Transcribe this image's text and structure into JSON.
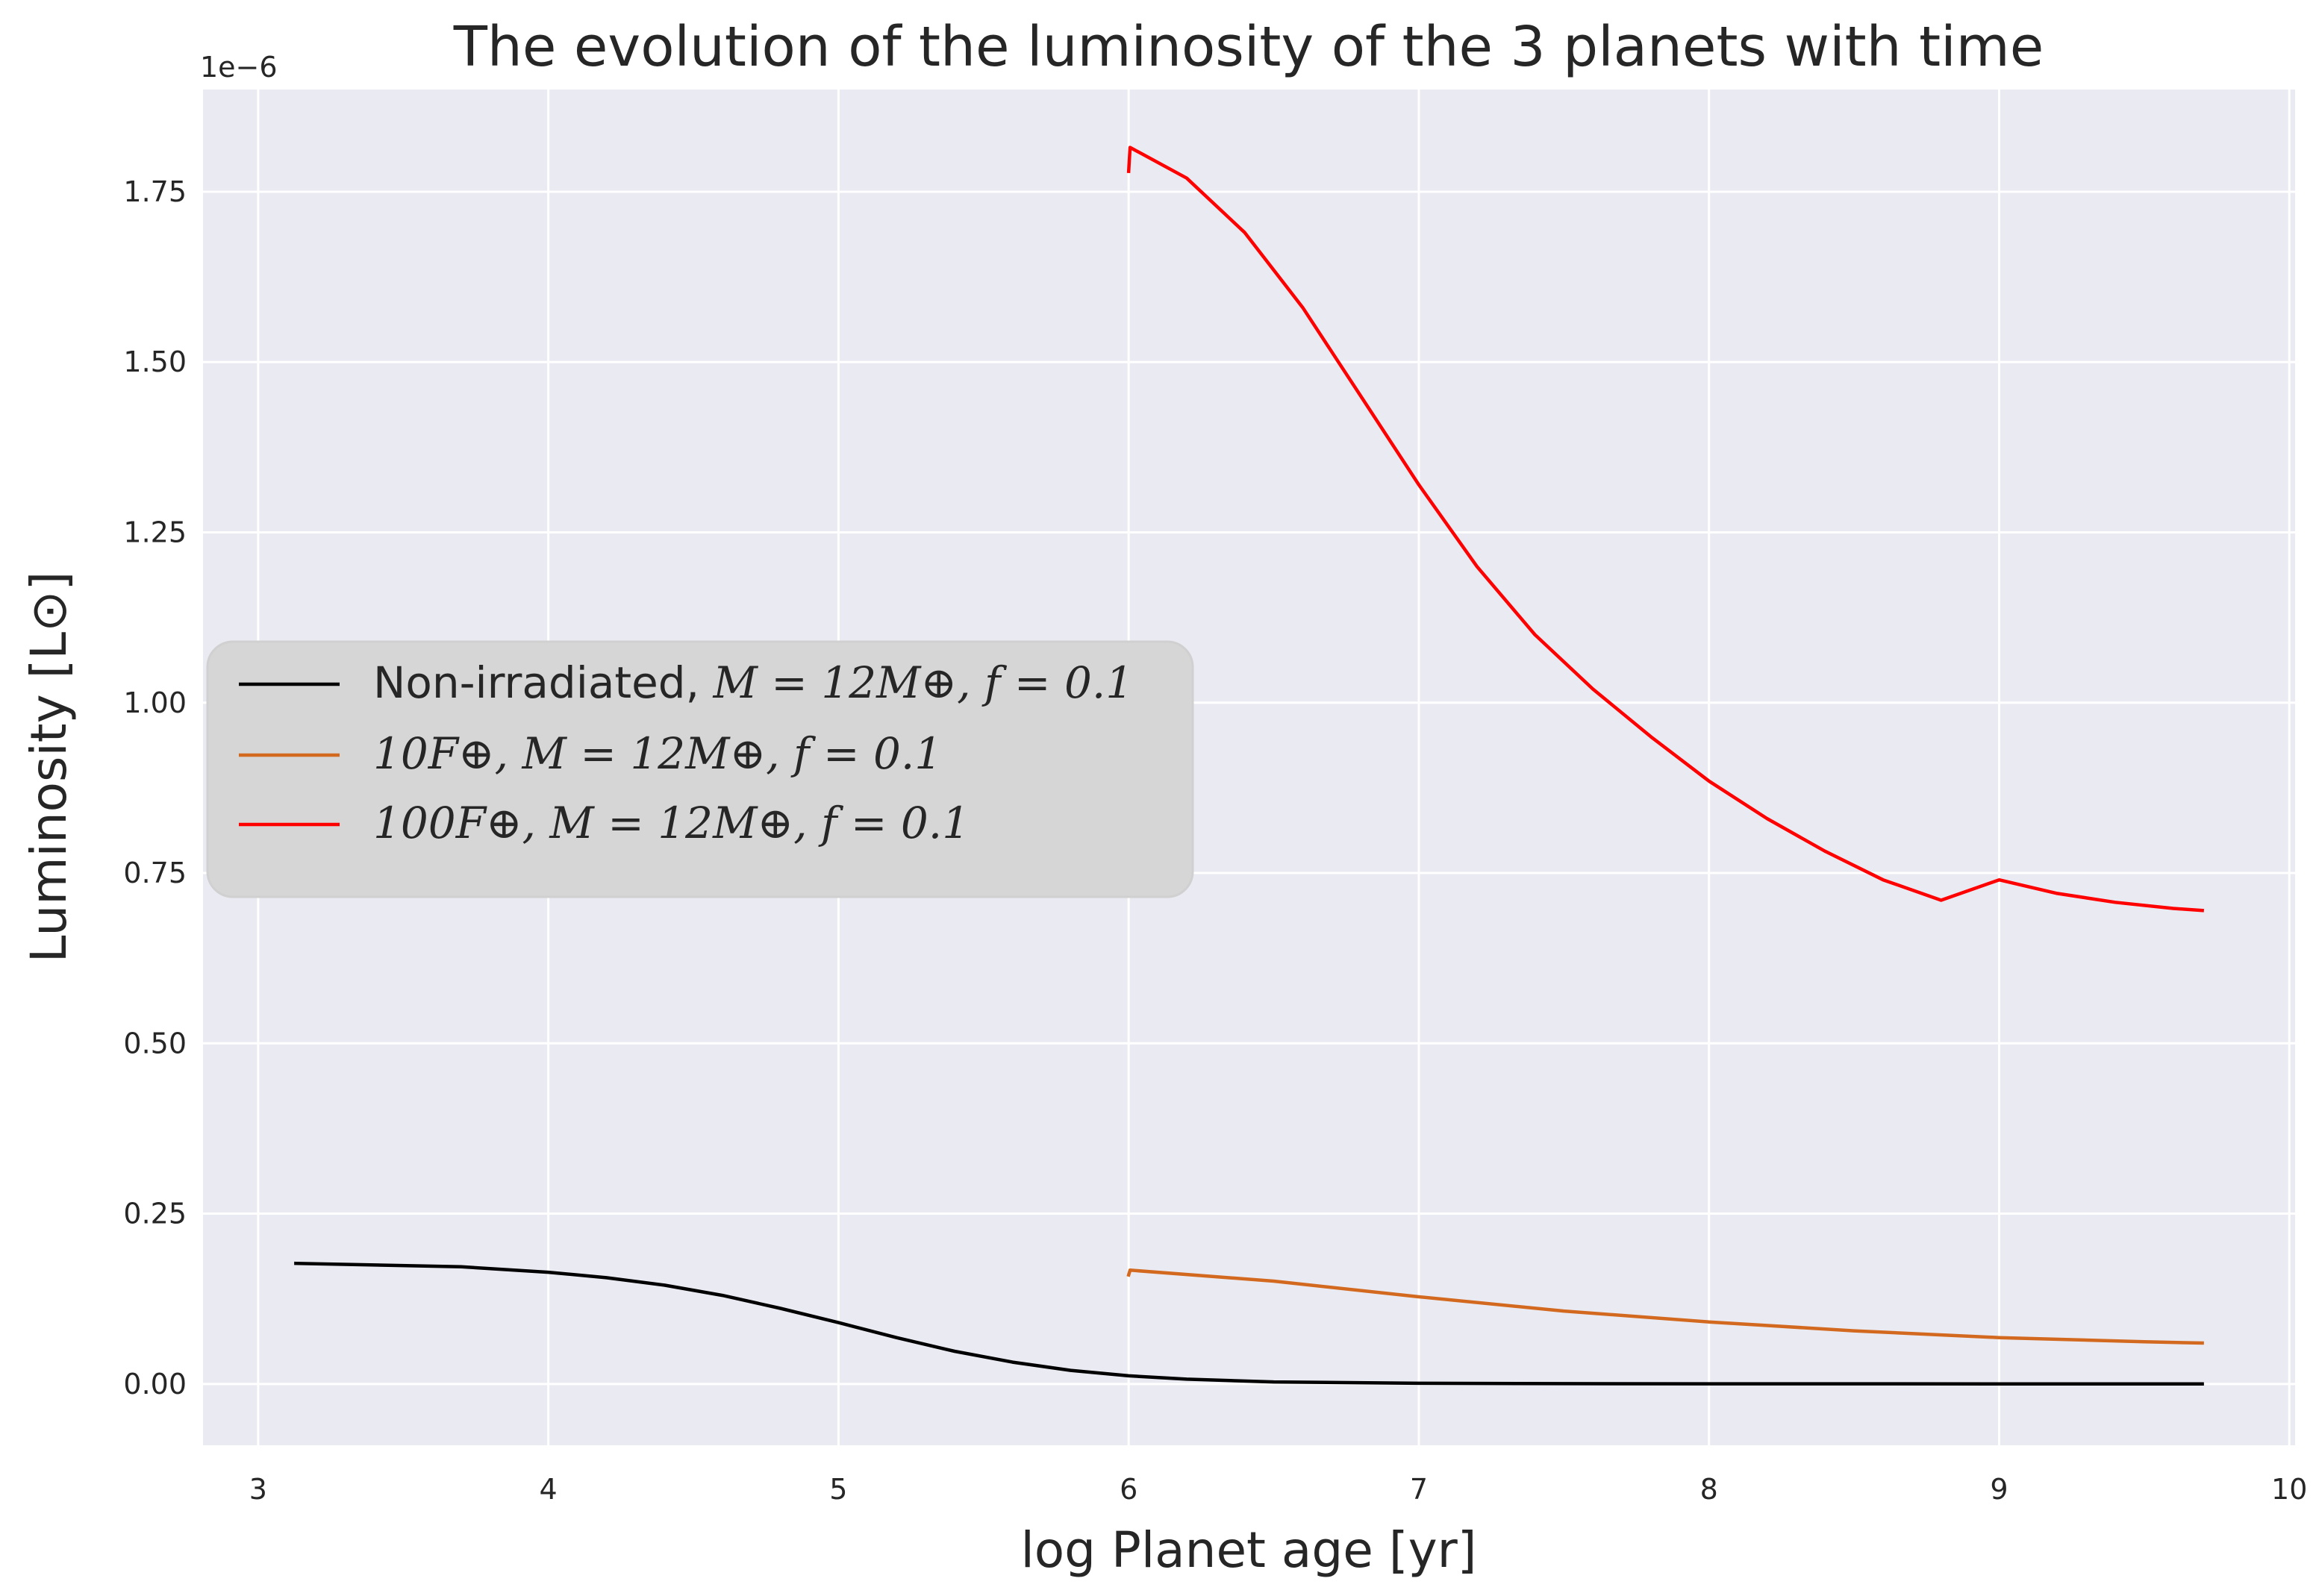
{
  "chart_data": {
    "type": "line",
    "title": "The evolution of the luminosity of the 3 planets with time",
    "xlabel": "log Planet age [yr]",
    "ylabel": "Luminosity [L⊙]",
    "y_offset_label": "1e−6",
    "xlim": [
      2.81,
      10.02
    ],
    "ylim": [
      -0.09,
      1.9
    ],
    "x_ticks": [
      3,
      4,
      5,
      6,
      7,
      8,
      9,
      10
    ],
    "x_tick_labels": [
      "3",
      "4",
      "5",
      "6",
      "7",
      "8",
      "9",
      "10"
    ],
    "y_ticks": [
      0.0,
      0.25,
      0.5,
      0.75,
      1.0,
      1.25,
      1.5,
      1.75
    ],
    "y_tick_labels": [
      "0.00",
      "0.25",
      "0.50",
      "0.75",
      "1.00",
      "1.25",
      "1.50",
      "1.75"
    ],
    "grid": true,
    "legend_position": "center-left",
    "background": "#eaeaf2",
    "series": [
      {
        "name": "Non-irradiated, M = 12M⊕, f = 0.1",
        "legend_parts": {
          "plain": "Non-irradiated, ",
          "math": "M = 12M⊕, f = 0.1"
        },
        "color": "#000000",
        "x": [
          3.13,
          3.7,
          4.0,
          4.2,
          4.4,
          4.6,
          4.8,
          5.0,
          5.2,
          5.4,
          5.6,
          5.8,
          6.0,
          6.2,
          6.5,
          7.0,
          7.5,
          8.0,
          9.0,
          9.7
        ],
        "y": [
          0.177,
          0.172,
          0.164,
          0.156,
          0.145,
          0.13,
          0.111,
          0.09,
          0.068,
          0.048,
          0.032,
          0.02,
          0.012,
          0.007,
          0.003,
          0.001,
          0.0005,
          0.0003,
          0.0001,
          0.0
        ]
      },
      {
        "name": "10F⊕, M = 12M⊕, f = 0.1",
        "legend_parts": {
          "plain": "",
          "math": "10F⊕, M = 12M⊕, f = 0.1"
        },
        "color": "#d2691e",
        "x": [
          6.0,
          6.005,
          6.5,
          7.0,
          7.5,
          8.0,
          8.5,
          9.0,
          9.5,
          9.7
        ],
        "y": [
          0.16,
          0.167,
          0.151,
          0.128,
          0.107,
          0.091,
          0.078,
          0.068,
          0.062,
          0.06
        ]
      },
      {
        "name": "100F⊕, M = 12M⊕, f = 0.1",
        "legend_parts": {
          "plain": "",
          "math": "100F⊕, M = 12M⊕, f = 0.1"
        },
        "color": "#ff0000",
        "x": [
          6.0,
          6.005,
          6.2,
          6.4,
          6.6,
          6.8,
          7.0,
          7.2,
          7.4,
          7.6,
          7.8,
          8.0,
          8.2,
          8.4,
          8.6,
          8.8,
          9.0,
          9.2,
          9.4,
          9.6,
          9.7
        ],
        "y": [
          1.78,
          1.815,
          1.77,
          1.69,
          1.58,
          1.45,
          1.32,
          1.2,
          1.1,
          1.02,
          0.95,
          0.885,
          0.83,
          0.782,
          0.74,
          0.71,
          0.74,
          0.72,
          0.707,
          0.698,
          0.695
        ]
      }
    ]
  }
}
